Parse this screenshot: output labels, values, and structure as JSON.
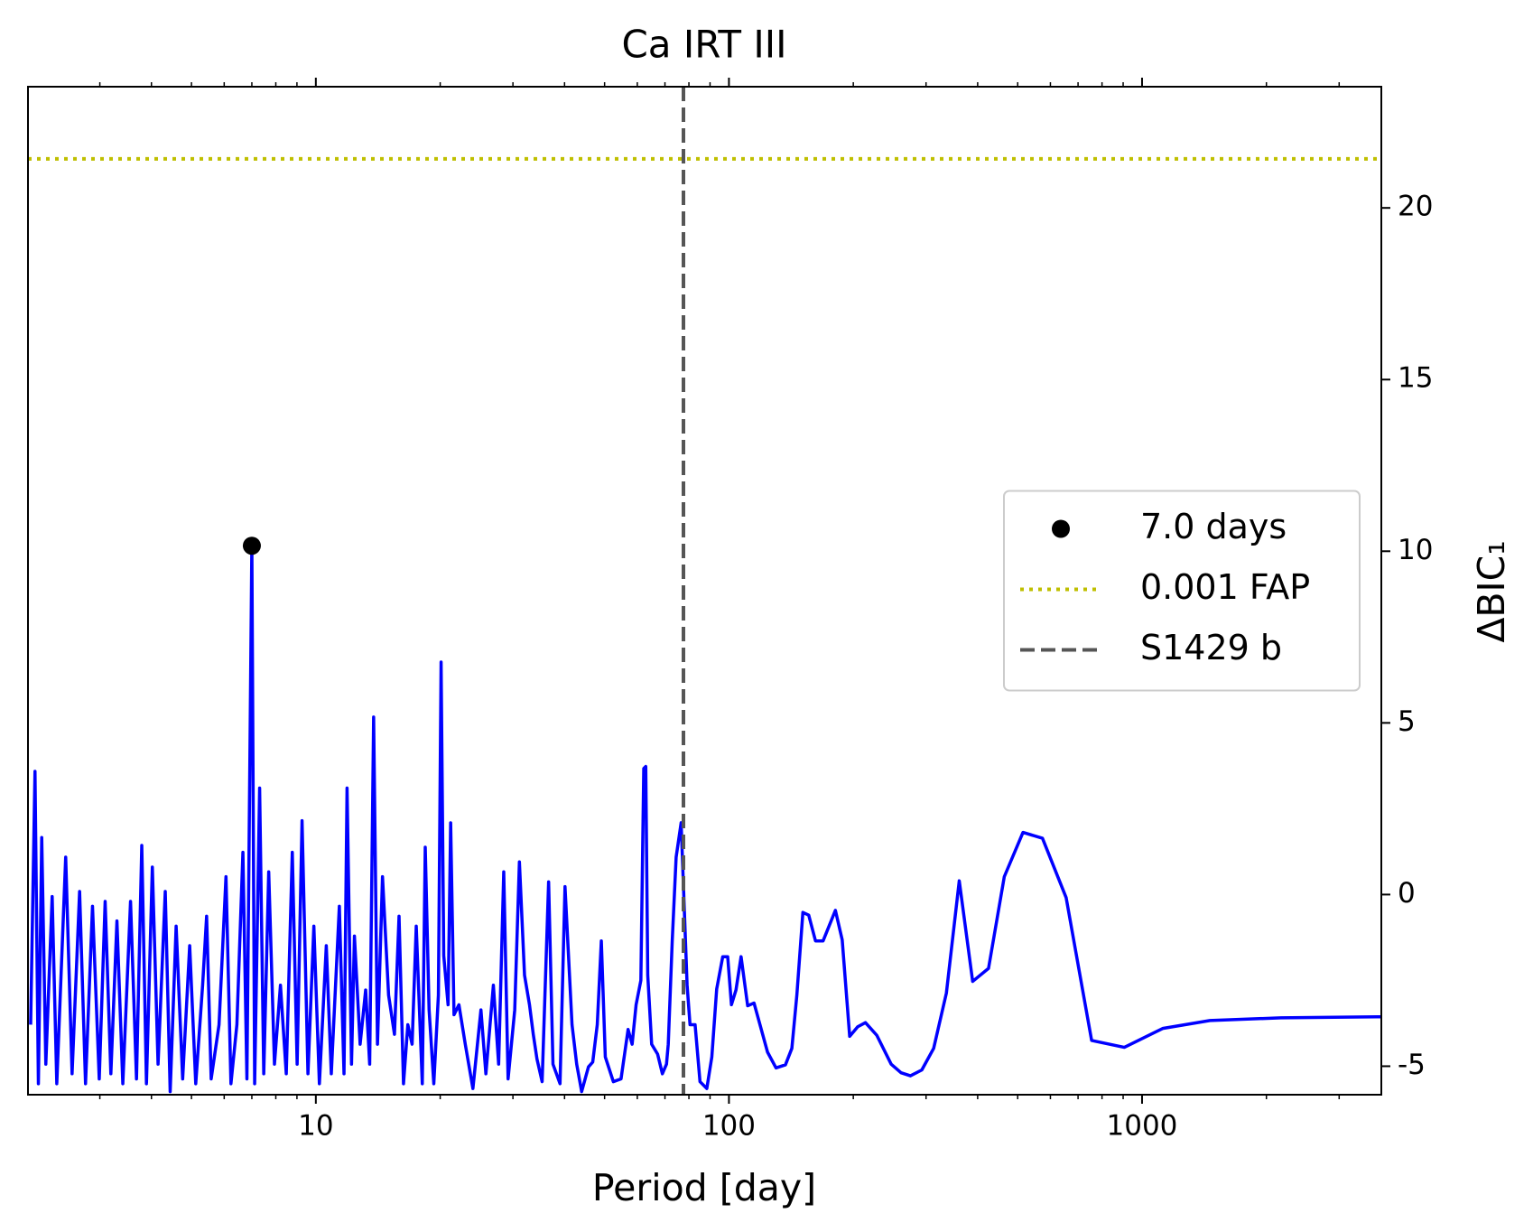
{
  "chart_data": {
    "type": "line",
    "title": "Ca IRT III",
    "x_label": "Period [day]",
    "y_label": "ΔBIC₁",
    "xlog": true,
    "xlim": [
      2.01,
      3795
    ],
    "xticks": [
      10,
      100,
      1000
    ],
    "xminorticks": [
      3,
      4,
      5,
      6,
      7,
      8,
      9,
      20,
      30,
      40,
      50,
      60,
      70,
      80,
      90,
      200,
      300,
      400,
      500,
      600,
      700,
      800,
      900,
      2000,
      3000
    ],
    "ylim": [
      -5.83,
      23.53
    ],
    "yticks": [
      -5,
      0,
      5,
      10,
      15,
      20
    ],
    "legend": "center right",
    "x": [
      2.04,
      2.09,
      2.13,
      2.17,
      2.22,
      2.3,
      2.36,
      2.48,
      2.57,
      2.68,
      2.77,
      2.88,
      2.99,
      3.09,
      3.19,
      3.3,
      3.41,
      3.56,
      3.68,
      3.79,
      3.89,
      4.02,
      4.15,
      4.32,
      4.44,
      4.59,
      4.76,
      4.95,
      5.12,
      5.32,
      5.44,
      5.58,
      5.83,
      6.06,
      6.23,
      6.44,
      6.66,
      6.81,
      7.0,
      7.11,
      7.31,
      7.48,
      7.69,
      7.94,
      8.21,
      8.48,
      8.77,
      9.01,
      9.26,
      9.57,
      9.89,
      10.2,
      10.6,
      10.9,
      11.4,
      11.7,
      11.9,
      12.2,
      12.4,
      12.8,
      13.2,
      13.5,
      13.8,
      14.1,
      14.5,
      15.0,
      15.5,
      15.9,
      16.3,
      16.7,
      17.1,
      17.5,
      18.1,
      18.4,
      18.8,
      19.3,
      19.8,
      20.1,
      20.4,
      20.9,
      21.2,
      21.6,
      22.2,
      23.0,
      24.0,
      25.1,
      25.8,
      26.9,
      27.7,
      28.5,
      29.2,
      30.3,
      31.1,
      32.0,
      32.9,
      33.6,
      34.3,
      35.3,
      36.6,
      37.5,
      39.0,
      40.1,
      41.7,
      42.8,
      44.0,
      45.7,
      46.8,
      48.0,
      49.1,
      50.2,
      52.5,
      54.8,
      57.0,
      58.3,
      59.6,
      61.2,
      62.2,
      62.9,
      63.6,
      65.0,
      67.2,
      69.0,
      70.6,
      71.3,
      72.9,
      74.5,
      76.6,
      79.2,
      80.5,
      82.8,
      85.1,
      88.4,
      90.9,
      93.4,
      96.6,
      99.3,
      101.4,
      104,
      107,
      111,
      115,
      124,
      130,
      137,
      142,
      146,
      151,
      156,
      162,
      169,
      181,
      188,
      196,
      205,
      214,
      228,
      247,
      261,
      275,
      293,
      313,
      336,
      361,
      389,
      425,
      464,
      515,
      574,
      655,
      755,
      906,
      1122,
      1459,
      2168,
      3795
    ],
    "series": [
      {
        "color": "#0000ff",
        "values": [
          -3.79,
          3.59,
          -5.51,
          1.66,
          -4.94,
          -0.06,
          -5.51,
          1.09,
          -5.22,
          0.09,
          -5.51,
          -0.34,
          -5.37,
          -0.2,
          -5.22,
          -0.77,
          -5.51,
          -0.2,
          -5.37,
          1.43,
          -5.51,
          0.8,
          -4.94,
          0.09,
          -5.74,
          -0.92,
          -5.37,
          -1.49,
          -5.51,
          -2.64,
          -0.63,
          -5.37,
          -3.79,
          0.52,
          -5.51,
          -3.79,
          1.23,
          -5.37,
          10.16,
          -5.51,
          3.1,
          -5.22,
          0.66,
          -4.94,
          -2.64,
          -5.22,
          1.23,
          -4.94,
          2.15,
          -5.22,
          -0.92,
          -5.51,
          -1.49,
          -5.22,
          -0.34,
          -5.22,
          3.1,
          -4.94,
          -1.21,
          -4.36,
          -2.78,
          -4.94,
          5.17,
          -4.36,
          0.52,
          -2.93,
          -4.07,
          -0.63,
          -5.51,
          -3.79,
          -4.36,
          -0.92,
          -5.51,
          1.38,
          -3.36,
          -5.51,
          -2.93,
          6.77,
          -1.78,
          -3.21,
          2.09,
          -3.5,
          -3.21,
          -4.36,
          -5.65,
          -3.36,
          -5.22,
          -2.64,
          -4.94,
          0.66,
          -5.37,
          -3.36,
          0.95,
          -2.35,
          -3.21,
          -4.07,
          -4.79,
          -5.45,
          0.37,
          -4.94,
          -5.51,
          0.23,
          -3.79,
          -4.94,
          -5.74,
          -5.02,
          -4.88,
          -3.79,
          -1.35,
          -4.73,
          -5.45,
          -5.37,
          -3.93,
          -4.36,
          -3.21,
          -2.5,
          3.67,
          3.73,
          -2.35,
          -4.36,
          -4.65,
          -5.22,
          -4.94,
          -4.36,
          -1.35,
          1.09,
          2.09,
          -2.64,
          -3.79,
          -3.79,
          -5.45,
          -5.65,
          -4.73,
          -2.75,
          -1.81,
          -1.81,
          -3.21,
          -2.78,
          -1.81,
          -3.24,
          -3.16,
          -4.59,
          -5.05,
          -4.96,
          -4.48,
          -2.93,
          -0.52,
          -0.6,
          -1.35,
          -1.35,
          -0.46,
          -1.32,
          -4.13,
          -3.85,
          -3.73,
          -4.1,
          -4.94,
          -5.19,
          -5.28,
          -5.11,
          -4.48,
          -2.87,
          0.4,
          -2.53,
          -2.15,
          0.52,
          1.81,
          1.64,
          -0.09,
          -4.25,
          -4.45,
          -3.9,
          -3.67,
          -3.59,
          -3.56
        ]
      }
    ],
    "points": [
      {
        "name": "7.0 days",
        "x": 7.0,
        "y": 10.16,
        "color": "#000000"
      }
    ],
    "hlines": [
      {
        "name": "0.001 FAP",
        "y": 21.43,
        "color": "#bfbf00"
      }
    ],
    "vlines": [
      {
        "name": "S1429 b",
        "x": 77.6,
        "color": "#555555"
      }
    ]
  }
}
